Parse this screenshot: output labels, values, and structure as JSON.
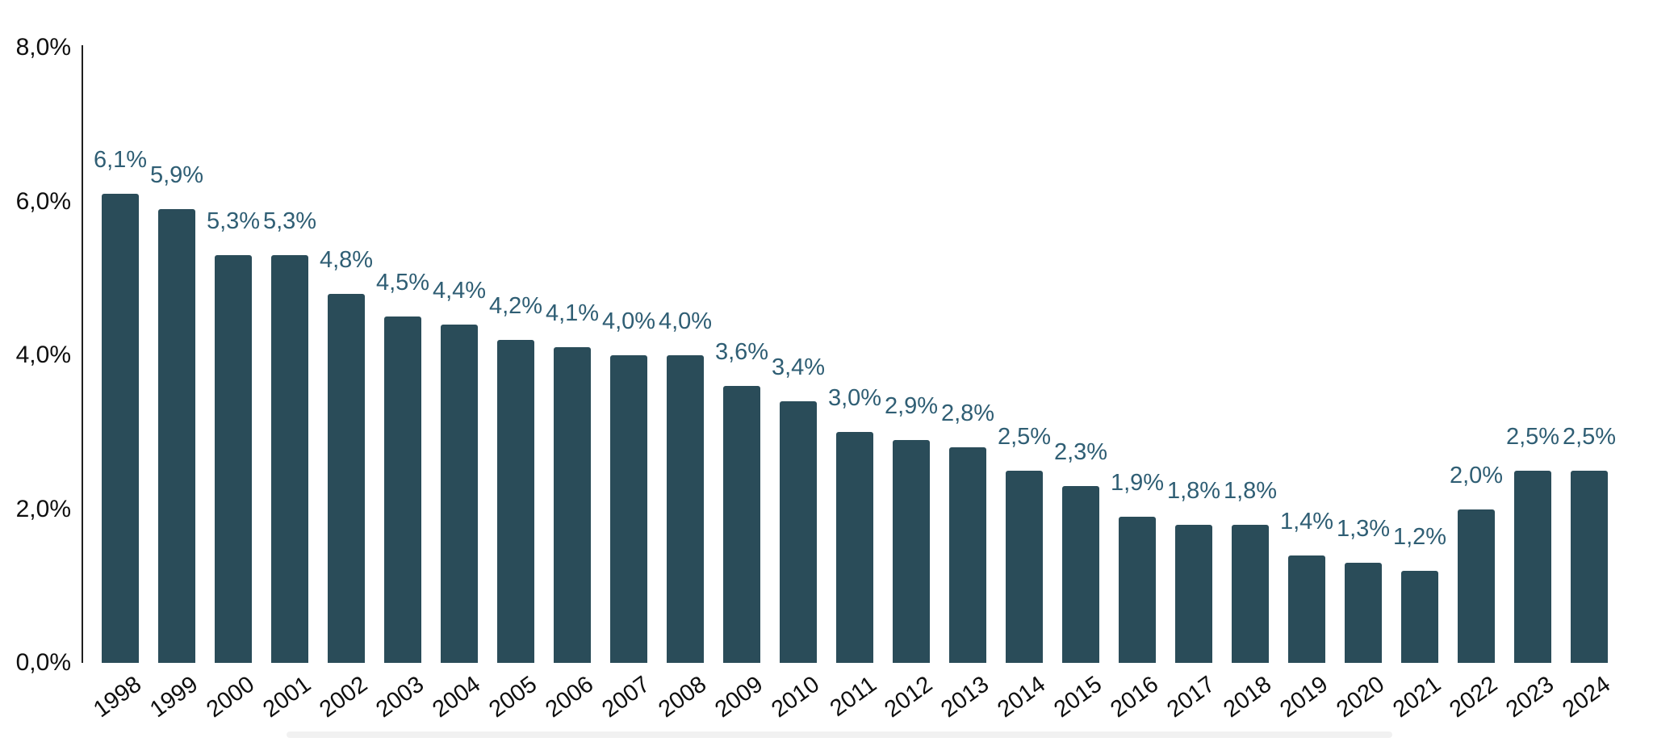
{
  "chart_data": {
    "type": "bar",
    "categories": [
      "1998",
      "1999",
      "2000",
      "2001",
      "2002",
      "2003",
      "2004",
      "2005",
      "2006",
      "2007",
      "2008",
      "2009",
      "2010",
      "2011",
      "2012",
      "2013",
      "2014",
      "2015",
      "2016",
      "2017",
      "2018",
      "2019",
      "2020",
      "2021",
      "2022",
      "2023",
      "2024"
    ],
    "values": [
      6.1,
      5.9,
      5.3,
      5.3,
      4.8,
      4.5,
      4.4,
      4.2,
      4.1,
      4.0,
      4.0,
      3.6,
      3.4,
      3.0,
      2.9,
      2.8,
      2.5,
      2.3,
      1.9,
      1.8,
      1.8,
      1.4,
      1.3,
      1.2,
      2.0,
      2.5,
      2.5
    ],
    "value_labels": [
      "6,1%",
      "5,9%",
      "5,3%",
      "5,3%",
      "4,8%",
      "4,5%",
      "4,4%",
      "4,2%",
      "4,1%",
      "4,0%",
      "4,0%",
      "3,6%",
      "3,4%",
      "3,0%",
      "2,9%",
      "2,8%",
      "2,5%",
      "2,3%",
      "1,9%",
      "1,8%",
      "1,8%",
      "1,4%",
      "1,3%",
      "1,2%",
      "2,0%",
      "2,5%",
      "2,5%"
    ],
    "title": "",
    "xlabel": "",
    "ylabel": "",
    "ylim": [
      0,
      8
    ],
    "y_tick_labels": [
      "0,0%",
      "2,0%",
      "4,0%",
      "6,0%",
      "8,0%"
    ],
    "y_tick_values": [
      0,
      2,
      4,
      6,
      8
    ],
    "grid": false,
    "legend": "none",
    "decimal_separator": ",",
    "colors": {
      "bar": "#2a4c59",
      "value_label": "#2f5e74",
      "axis_text": "#0f0f0f",
      "axis_line": "#1f1f1f",
      "bottom_divider": "#f1f1f1",
      "background": "#ffffff"
    }
  }
}
